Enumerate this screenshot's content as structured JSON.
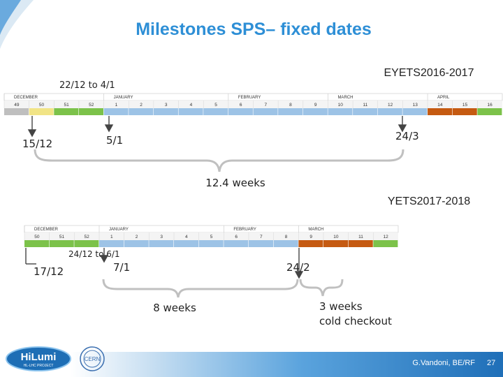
{
  "slide": {
    "title": "Milestones SPS– fixed dates",
    "author": "G.Vandoni, BE/RF",
    "page": "27"
  },
  "logos": {
    "hilumi_line1": "HiLumi",
    "hilumi_line2": "HL-LHC PROJECT",
    "cern": "CERN"
  },
  "colors": {
    "accent_blue": "#2e8fd6",
    "week_gray": "#bfbfbf",
    "week_yellow": "#f1e486",
    "week_green": "#7cc24a",
    "week_blue": "#9dc3e6",
    "week_orange": "#c55a11"
  },
  "eyets": {
    "title": "EYETS2016-2017",
    "period_label": "22/12 to 4/1",
    "months": [
      "DECEMBER",
      "JANUARY",
      "FEBRUARY",
      "MARCH",
      "APRIL"
    ],
    "weeks": [
      "49",
      "50",
      "51",
      "52",
      "1",
      "2",
      "3",
      "4",
      "5",
      "6",
      "7",
      "8",
      "9",
      "10",
      "11",
      "12",
      "13",
      "14",
      "15",
      "16"
    ],
    "week_states": [
      "gray",
      "yellow",
      "green",
      "green",
      "blue",
      "blue",
      "blue",
      "blue",
      "blue",
      "blue",
      "blue",
      "blue",
      "blue",
      "blue",
      "blue",
      "blue",
      "blue",
      "orange",
      "orange",
      "green"
    ],
    "marker_start": "15/12",
    "marker_mid": "5/1",
    "marker_end": "24/3",
    "duration": "12.4 weeks"
  },
  "yets": {
    "title": "YETS2017-2018",
    "period_label": "24/12 to 6/1",
    "months": [
      "DECEMBER",
      "JANUARY",
      "FEBRUARY",
      "MARCH"
    ],
    "weeks": [
      "50",
      "51",
      "52",
      "1",
      "2",
      "3",
      "4",
      "5",
      "6",
      "7",
      "8",
      "9",
      "10",
      "11",
      "12"
    ],
    "week_states": [
      "green",
      "green",
      "green",
      "blue",
      "blue",
      "blue",
      "blue",
      "blue",
      "blue",
      "blue",
      "blue",
      "orange",
      "orange",
      "orange",
      "green"
    ],
    "marker_start": "17/12",
    "marker_mid": "7/1",
    "marker_end": "24/2",
    "duration_main": "8 weeks",
    "duration_cold_line1": "3 weeks",
    "duration_cold_line2": "cold checkout"
  }
}
